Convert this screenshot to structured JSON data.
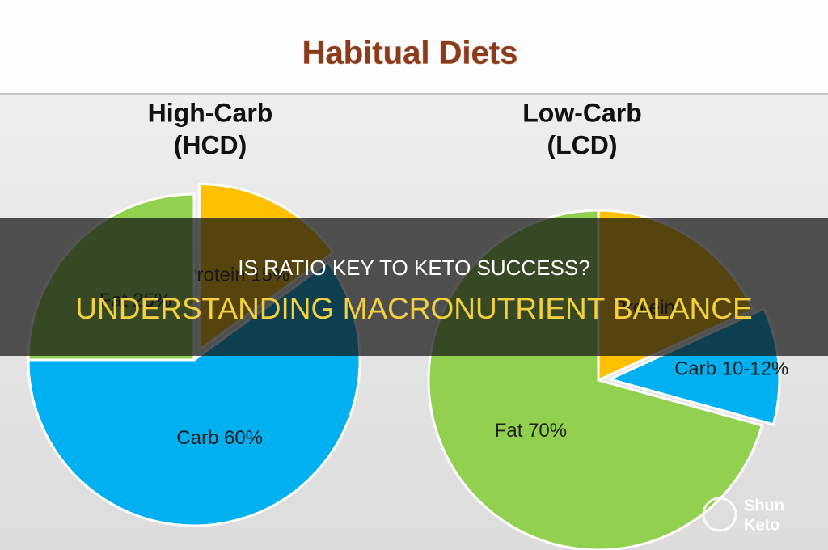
{
  "header": {
    "title": "Habitual Diets"
  },
  "chart_data": [
    {
      "type": "pie",
      "title": "High-Carb",
      "subtitle": "(HCD)",
      "categories": [
        "Protein",
        "Carb",
        "Fat"
      ],
      "values": [
        15,
        60,
        25
      ],
      "value_labels": [
        "Protein 15%",
        "Carb 60%",
        "Fat 25%"
      ],
      "colors": [
        "#ffc000",
        "#00b0f0",
        "#92d050"
      ],
      "explode": [
        true,
        false,
        false
      ]
    },
    {
      "type": "pie",
      "title": "Low-Carb",
      "subtitle": "(LCD)",
      "categories": [
        "Protein",
        "Carb",
        "Fat"
      ],
      "values": [
        18,
        11,
        70
      ],
      "value_labels": [
        "Protein",
        "Carb 10-12%",
        "Fat 70%"
      ],
      "colors": [
        "#ffc000",
        "#00b0f0",
        "#92d050"
      ],
      "explode": [
        false,
        true,
        false
      ]
    }
  ],
  "overlay": {
    "question": "IS RATIO KEY TO KETO SUCCESS?",
    "headline": "UNDERSTANDING MACRONUTRIENT BALANCE"
  },
  "watermark": {
    "line1": "Shun",
    "line2": "Keto"
  }
}
